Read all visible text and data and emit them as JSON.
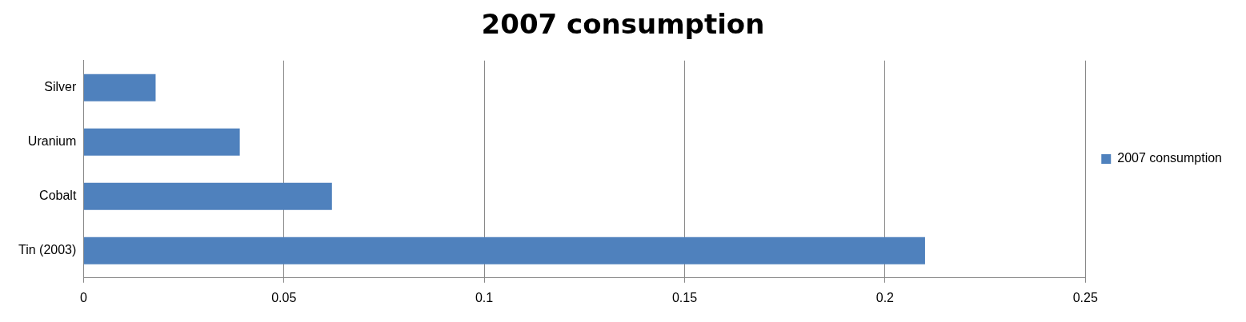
{
  "chart_data": {
    "type": "bar",
    "title": "2007 consumption",
    "orientation": "horizontal",
    "categories": [
      "Silver",
      "Uranium",
      "Cobalt",
      "Tin (2003)"
    ],
    "series": [
      {
        "name": "2007 consumption",
        "color": "#4f81bd",
        "values": [
          0.018,
          0.039,
          0.062,
          0.21
        ]
      }
    ],
    "xlim": [
      0,
      0.25
    ],
    "xticks": [
      0,
      0.05,
      0.1,
      0.15,
      0.2,
      0.25
    ],
    "grid": "x",
    "legend": "right"
  }
}
